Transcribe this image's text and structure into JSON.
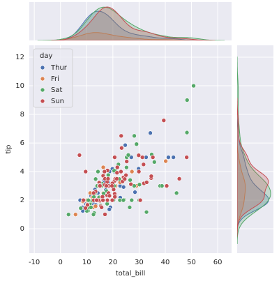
{
  "chart_data": {
    "type": "scatter",
    "marginal": "kde",
    "x_label": "total_bill",
    "y_label": "tip",
    "legend_title": "day",
    "legend": "upper left",
    "grid": true,
    "xlim": [
      -11.9,
      65.3
    ],
    "xticks": [
      -10,
      0,
      10,
      20,
      30,
      40,
      50,
      60
    ],
    "ylim": [
      -1.7,
      12.83
    ],
    "yticks": [
      0,
      2,
      4,
      6,
      8,
      10,
      12
    ],
    "series": [
      {
        "name": "Thur",
        "color": "#4c72b0",
        "x": [
          27.2,
          22.76,
          17.29,
          19.44,
          16.66,
          10.07,
          32.68,
          15.98,
          34.83,
          13.03,
          18.28,
          24.71,
          21.16,
          10.65,
          12.43,
          24.08,
          11.69,
          13.42,
          14.26,
          15.95,
          12.48,
          29.8,
          8.52,
          14.52,
          11.38,
          22.82,
          19.08,
          20.27,
          11.17,
          12.26,
          18.26,
          8.51,
          10.33,
          14.15,
          16.0,
          13.16,
          17.47,
          34.3,
          41.19,
          27.05,
          16.43,
          8.35,
          18.64,
          11.87,
          9.78,
          7.51,
          19.81,
          28.44,
          15.48,
          16.58,
          7.56,
          10.34,
          43.11,
          13.0,
          13.51,
          18.71,
          12.74,
          13.0,
          16.4,
          20.53,
          16.47,
          18.78
        ],
        "y": [
          4,
          3,
          2.71,
          3,
          3.4,
          1.83,
          5,
          2.03,
          5.17,
          2,
          4,
          5.85,
          3,
          1.5,
          1.8,
          2.92,
          2.31,
          1.68,
          2.5,
          2,
          2.52,
          4.2,
          1.48,
          2,
          2,
          2.18,
          1.5,
          2.83,
          1.5,
          2,
          3.25,
          1.25,
          2,
          2,
          2,
          2.75,
          3.5,
          6.7,
          5,
          5,
          2.3,
          1.5,
          1.36,
          1.63,
          1.73,
          2,
          4.19,
          2.56,
          2.02,
          4,
          1.44,
          2,
          5,
          2,
          2,
          4,
          2.01,
          2,
          2.5,
          4,
          3.23,
          3
        ]
      },
      {
        "name": "Fri",
        "color": "#dd8452",
        "x": [
          28.97,
          22.49,
          5.75,
          16.32,
          22.75,
          40.17,
          27.28,
          12.03,
          21.01,
          12.46,
          11.35,
          15.38,
          12.16,
          13.42,
          8.58,
          15.98,
          13.42,
          16.27,
          10.09
        ],
        "y": [
          3,
          3.5,
          1,
          4.3,
          3.25,
          4.73,
          4,
          1.5,
          3,
          1.5,
          2.5,
          3,
          2.2,
          3.48,
          1.92,
          3,
          1.58,
          2.5,
          2
        ]
      },
      {
        "name": "Sat",
        "color": "#55a868",
        "x": [
          20.65,
          17.92,
          20.29,
          15.77,
          39.42,
          19.82,
          17.81,
          13.37,
          12.69,
          21.7,
          19.65,
          9.55,
          18.35,
          15.06,
          20.69,
          17.78,
          24.06,
          16.31,
          16.93,
          18.69,
          31.27,
          16.04,
          38.01,
          26.41,
          11.24,
          48.27,
          20.29,
          13.81,
          11.02,
          18.29,
          17.59,
          20.08,
          16.45,
          3.07,
          20.23,
          15.01,
          12.02,
          17.07,
          26.86,
          25.28,
          14.73,
          10.51,
          44.3,
          22.42,
          20.92,
          15.36,
          20.49,
          25.21,
          18.24,
          14.31,
          14.0,
          7.25,
          50.81,
          15.81,
          26.59,
          38.73,
          24.27,
          12.76,
          30.06,
          25.89,
          48.33,
          13.27,
          28.17,
          12.9,
          28.15,
          11.59,
          7.74,
          30.14,
          10.77,
          15.53,
          10.07,
          12.6,
          32.83,
          35.83,
          29.03,
          27.18,
          22.67,
          17.82,
          13.42,
          24.01,
          15.69,
          11.61,
          10.63,
          34.81,
          32.9,
          22.12,
          20.45
        ],
        "y": [
          3.35,
          4.08,
          2.75,
          2.23,
          7.58,
          3.18,
          2.34,
          2,
          2,
          4.3,
          3,
          1.45,
          2.5,
          3,
          2.45,
          3.27,
          3.6,
          2,
          3.07,
          2.31,
          5,
          2.24,
          3,
          1.5,
          1.76,
          6.73,
          3.21,
          2,
          1.98,
          3.76,
          2.64,
          3.15,
          2.47,
          1,
          2.01,
          2.09,
          1.97,
          3,
          3.14,
          5,
          2.2,
          1.25,
          2.5,
          3.48,
          4.08,
          1.64,
          4.06,
          4.29,
          3.76,
          4,
          3,
          5.15,
          10,
          3.16,
          3.41,
          3,
          2.03,
          2.23,
          2,
          5.16,
          9,
          2.5,
          6.5,
          1.1,
          3,
          1.5,
          1.44,
          3.09,
          1.47,
          3,
          1.25,
          1,
          1.17,
          4.67,
          5.92,
          2,
          2,
          1.75,
          3.48,
          2,
          3,
          1.5,
          2,
          5.2,
          3.25,
          4.5,
          3
        ]
      },
      {
        "name": "Sun",
        "color": "#c44e52",
        "x": [
          16.99,
          10.34,
          21.01,
          23.68,
          24.59,
          25.29,
          8.77,
          26.88,
          15.04,
          14.78,
          10.27,
          35.26,
          15.42,
          18.43,
          14.83,
          21.58,
          10.33,
          16.29,
          16.97,
          20.65,
          17.92,
          20.29,
          15.77,
          39.42,
          19.82,
          17.81,
          13.37,
          12.69,
          21.7,
          19.65,
          9.55,
          18.35,
          15.06,
          20.69,
          17.78,
          24.06,
          16.31,
          16.93,
          18.69,
          31.27,
          16.04,
          7.25,
          31.85,
          16.82,
          32.9,
          17.89,
          14.48,
          9.6,
          34.63,
          34.65,
          23.33,
          45.35,
          23.17,
          40.55,
          20.69,
          20.9,
          30.46,
          18.15,
          23.1,
          15.69,
          19.77,
          29.85,
          48.17,
          25.0,
          13.39,
          16.49,
          21.5,
          12.66,
          16.21,
          13.81,
          17.51,
          24.52,
          20.76,
          31.71,
          7.25,
          29.93
        ],
        "y": [
          1.01,
          1.66,
          3.5,
          3.31,
          3.61,
          4.71,
          2,
          3.12,
          1.96,
          3.23,
          1.71,
          5,
          1.57,
          3,
          3.02,
          3.92,
          1.67,
          3.71,
          3.5,
          3.35,
          4.08,
          2.75,
          2.23,
          7.58,
          3.18,
          2.34,
          2,
          2,
          4.3,
          3,
          1.45,
          2.5,
          3,
          2.45,
          3.27,
          3.6,
          2,
          3.07,
          2.31,
          5,
          2.24,
          5.15,
          3.18,
          4,
          3.25,
          2,
          2,
          4,
          3.55,
          3.68,
          5.65,
          3.5,
          6.5,
          3,
          5,
          3.5,
          2,
          3.5,
          4,
          1.5,
          2,
          5.14,
          5,
          3.75,
          2.61,
          2,
          3.5,
          2.5,
          2,
          2,
          3,
          3.48,
          2.24,
          4.5,
          5.15,
          4
        ]
      }
    ]
  }
}
